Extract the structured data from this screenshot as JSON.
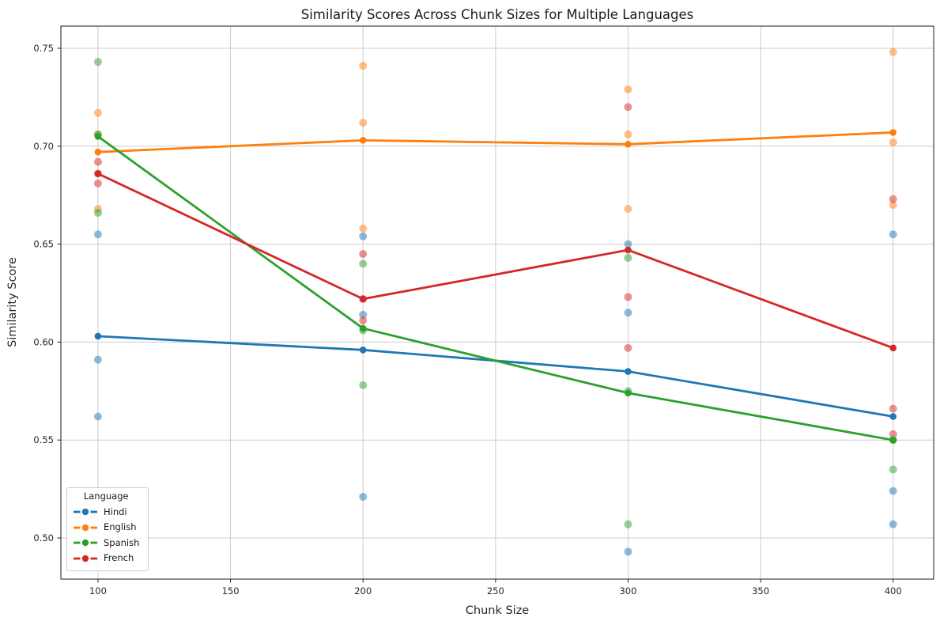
{
  "chart_data": {
    "type": "line",
    "title": "Similarity Scores Across Chunk Sizes for Multiple Languages",
    "xlabel": "Chunk Size",
    "ylabel": "Similarity Score",
    "x": [
      100,
      200,
      300,
      400
    ],
    "xticks": [
      100,
      150,
      200,
      250,
      300,
      350,
      400
    ],
    "yticks": [
      0.5,
      0.55,
      0.6,
      0.65,
      0.7,
      0.75
    ],
    "xlim": [
      86,
      415.3
    ],
    "ylim": [
      0.479,
      0.7613
    ],
    "grid": true,
    "legend": {
      "title": "Language",
      "position": "lower-left"
    },
    "series": [
      {
        "name": "Hindi",
        "color": "#1f77b4",
        "mean_values": [
          0.603,
          0.596,
          0.585,
          0.562
        ],
        "scatter_values": [
          [
            0.655,
            0.591,
            0.562
          ],
          [
            0.654,
            0.614,
            0.521
          ],
          [
            0.65,
            0.615,
            0.493
          ],
          [
            0.655,
            0.524,
            0.507
          ]
        ]
      },
      {
        "name": "English",
        "color": "#ff7f0e",
        "mean_values": [
          0.697,
          0.703,
          0.701,
          0.707
        ],
        "scatter_values": [
          [
            0.717,
            0.706,
            0.668
          ],
          [
            0.741,
            0.712,
            0.658
          ],
          [
            0.729,
            0.706,
            0.668
          ],
          [
            0.748,
            0.702,
            0.67
          ]
        ]
      },
      {
        "name": "Spanish",
        "color": "#2ca02c",
        "mean_values": [
          0.705,
          0.607,
          0.574,
          0.55
        ],
        "scatter_values": [
          [
            0.743,
            0.706,
            0.666
          ],
          [
            0.64,
            0.606,
            0.578
          ],
          [
            0.643,
            0.575,
            0.507
          ],
          [
            0.55,
            0.535
          ]
        ]
      },
      {
        "name": "French",
        "color": "#d62728",
        "mean_values": [
          0.686,
          0.622,
          0.647,
          0.597
        ],
        "scatter_values": [
          [
            0.692,
            0.686,
            0.681
          ],
          [
            0.645,
            0.622,
            0.611
          ],
          [
            0.72,
            0.623,
            0.597
          ],
          [
            0.673,
            0.566,
            0.553
          ]
        ]
      }
    ]
  }
}
